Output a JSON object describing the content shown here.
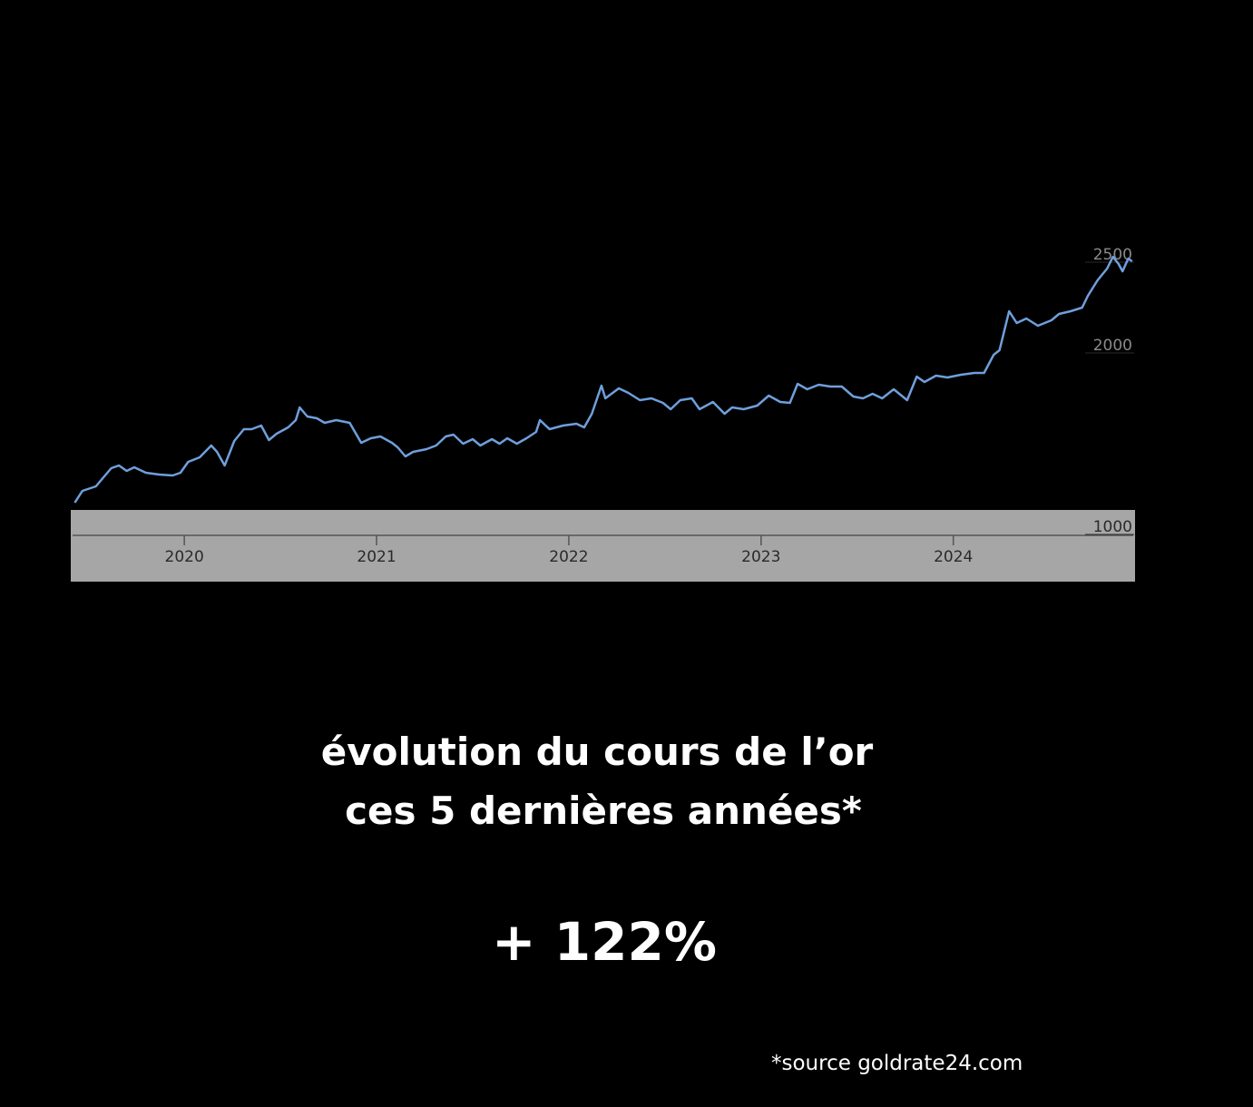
{
  "chart_data": {
    "type": "line",
    "title": "évolution du cours de l’or",
    "subtitle": "ces 5 dernières années*",
    "annotation": "+ 122%",
    "source": "*source goldrate24.com",
    "color": "#6f9fdc",
    "xlim": [
      2019.4,
      2024.95
    ],
    "xticks": [
      2020,
      2021,
      2022,
      2023,
      2024
    ],
    "ylim": [
      1000,
      2600
    ],
    "yticks": [
      1000,
      2000,
      2500
    ],
    "x": [
      2019.43,
      2019.47,
      2019.54,
      2019.58,
      2019.62,
      2019.66,
      2019.7,
      2019.74,
      2019.8,
      2019.87,
      2019.94,
      2019.98,
      2020.02,
      2020.08,
      2020.14,
      2020.17,
      2020.21,
      2020.26,
      2020.31,
      2020.35,
      2020.4,
      2020.44,
      2020.48,
      2020.54,
      2020.58,
      2020.6,
      2020.64,
      2020.69,
      2020.73,
      2020.79,
      2020.86,
      2020.92,
      2020.97,
      2021.02,
      2021.08,
      2021.11,
      2021.15,
      2021.19,
      2021.26,
      2021.31,
      2021.36,
      2021.4,
      2021.45,
      2021.5,
      2021.54,
      2021.6,
      2021.64,
      2021.68,
      2021.73,
      2021.78,
      2021.83,
      2021.85,
      2021.9,
      2021.97,
      2022.04,
      2022.08,
      2022.12,
      2022.17,
      2022.19,
      2022.26,
      2022.31,
      2022.37,
      2022.43,
      2022.49,
      2022.53,
      2022.58,
      2022.64,
      2022.68,
      2022.75,
      2022.81,
      2022.85,
      2022.91,
      2022.98,
      2023.04,
      2023.1,
      2023.15,
      2023.19,
      2023.24,
      2023.3,
      2023.36,
      2023.42,
      2023.48,
      2023.53,
      2023.58,
      2023.63,
      2023.69,
      2023.76,
      2023.81,
      2023.85,
      2023.91,
      2023.97,
      2024.04,
      2024.11,
      2024.16,
      2024.21,
      2024.24,
      2024.29,
      2024.33,
      2024.38,
      2024.44,
      2024.51,
      2024.55,
      2024.61,
      2024.67,
      2024.7,
      2024.75,
      2024.8,
      2024.83,
      2024.86,
      2024.88,
      2024.91,
      2024.93
    ],
    "values": [
      1130,
      1195,
      1220,
      1270,
      1320,
      1335,
      1305,
      1325,
      1295,
      1285,
      1280,
      1295,
      1355,
      1380,
      1445,
      1410,
      1335,
      1470,
      1535,
      1535,
      1555,
      1475,
      1510,
      1545,
      1585,
      1655,
      1605,
      1595,
      1570,
      1585,
      1570,
      1460,
      1485,
      1495,
      1460,
      1435,
      1385,
      1410,
      1425,
      1445,
      1495,
      1505,
      1455,
      1480,
      1445,
      1480,
      1455,
      1485,
      1455,
      1485,
      1520,
      1585,
      1535,
      1555,
      1565,
      1545,
      1620,
      1775,
      1705,
      1760,
      1735,
      1695,
      1705,
      1680,
      1645,
      1695,
      1705,
      1645,
      1685,
      1620,
      1655,
      1645,
      1665,
      1720,
      1685,
      1680,
      1785,
      1755,
      1780,
      1770,
      1770,
      1715,
      1705,
      1730,
      1705,
      1755,
      1695,
      1825,
      1795,
      1830,
      1820,
      1835,
      1845,
      1845,
      1945,
      1970,
      2185,
      2120,
      2145,
      2105,
      2135,
      2170,
      2185,
      2205,
      2270,
      2355,
      2420,
      2485,
      2445,
      2405,
      2475,
      2460
    ]
  }
}
